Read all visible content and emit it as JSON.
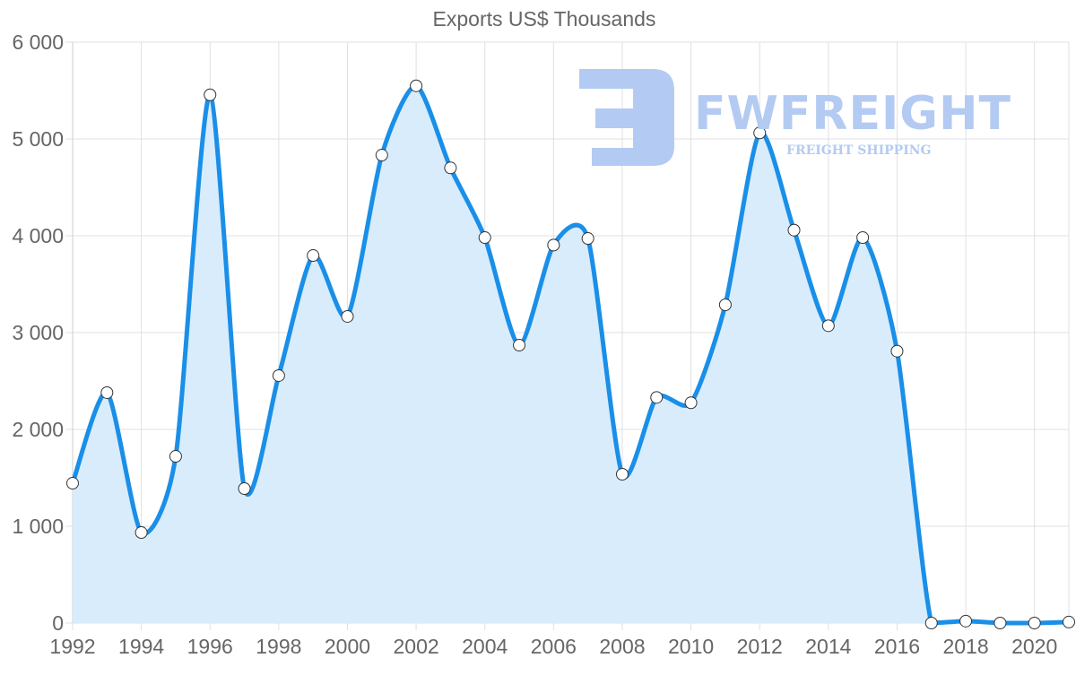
{
  "title": "Exports US$ Thousands",
  "watermark": {
    "brand": "FWFREIGHT",
    "tagline": "FREIGHT SHIPPING",
    "color": "#b3cbf2"
  },
  "colors": {
    "line": "#1a8fe8",
    "fill": "#d9ecfc",
    "grid": "#e0e0e0",
    "text": "#666666",
    "point_fill": "#ffffff",
    "point_stroke": "#333333"
  },
  "chart_data": {
    "type": "area",
    "title": "Exports US$ Thousands",
    "xlabel": "",
    "ylabel": "",
    "x": [
      1992,
      1993,
      1994,
      1995,
      1996,
      1997,
      1998,
      1999,
      2000,
      2001,
      2002,
      2003,
      2004,
      2005,
      2006,
      2007,
      2008,
      2009,
      2010,
      2011,
      2012,
      2013,
      2014,
      2015,
      2016,
      2017,
      2018,
      2019,
      2020,
      2021
    ],
    "series": [
      {
        "name": "Exports US$ Thousands",
        "values": [
          1444,
          2380,
          935,
          1722,
          5456,
          1389,
          2556,
          3796,
          3167,
          4833,
          5549,
          4701,
          3981,
          2870,
          3904,
          3972,
          1537,
          2330,
          2275,
          3287,
          5062,
          4058,
          3071,
          3981,
          2808,
          0,
          20,
          0,
          0,
          10
        ]
      }
    ],
    "ylim": [
      0,
      6000
    ],
    "yticks": [
      0,
      1000,
      2000,
      3000,
      4000,
      5000,
      6000
    ],
    "ytick_labels": [
      "0",
      "1 000",
      "2 000",
      "3 000",
      "4 000",
      "5 000",
      "6 000"
    ],
    "xtick_labels": [
      "1992",
      "1994",
      "1996",
      "1998",
      "2000",
      "2002",
      "2004",
      "2006",
      "2008",
      "2010",
      "2012",
      "2014",
      "2016",
      "2018",
      "2020"
    ],
    "grid": true,
    "legend": null
  }
}
